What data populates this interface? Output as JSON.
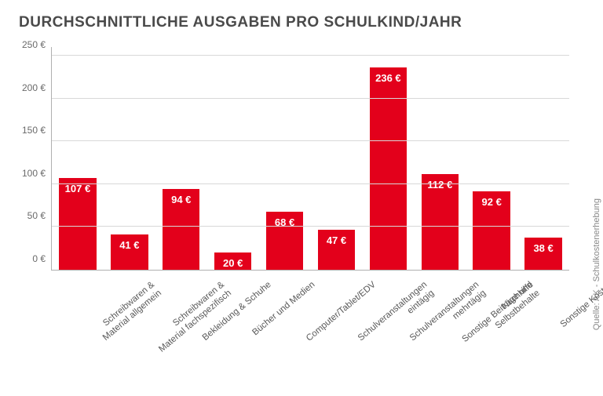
{
  "title": "DURCHSCHNITTLICHE AUSGABEN PRO SCHULKIND/JAHR",
  "source": "Quelle: AK - Schulkostenerhebung",
  "chart": {
    "type": "bar",
    "bar_color": "#e3001b",
    "background_color": "#ffffff",
    "grid_color": "#d8d8d8",
    "axis_color": "#b0b0b0",
    "title_color": "#4a4a4a",
    "label_color": "#5a5a5a",
    "value_label_color": "#ffffff",
    "title_fontsize": 19,
    "value_fontsize": 13,
    "xlabel_fontsize": 11.5,
    "ytick_fontsize": 12,
    "ylim": [
      0,
      260
    ],
    "ytick_step": 50,
    "yticks": [
      {
        "value": 0,
        "label": "0 €"
      },
      {
        "value": 50,
        "label": "50 €"
      },
      {
        "value": 100,
        "label": "100 €"
      },
      {
        "value": 150,
        "label": "150 €"
      },
      {
        "value": 200,
        "label": "200 €"
      },
      {
        "value": 250,
        "label": "250 €"
      }
    ],
    "bars": [
      {
        "value": 107,
        "label": "107 €",
        "category": "Schreibwaren &\nMaterial allgemein"
      },
      {
        "value": 41,
        "label": "41 €",
        "category": "Schreibwaren &\nMaterial fachspezifisch"
      },
      {
        "value": 94,
        "label": "94 €",
        "category": "Bekleidung & Schuhe"
      },
      {
        "value": 20,
        "label": "20 €",
        "category": "Bücher und Medien"
      },
      {
        "value": 68,
        "label": "68 €",
        "category": "Computer/Tablet/EDV"
      },
      {
        "value": 47,
        "label": "47 €",
        "category": "Schulveranstaltungen\neintägig"
      },
      {
        "value": 236,
        "label": "236 €",
        "category": "Schulveranstaltungen\nmehrtägig"
      },
      {
        "value": 112,
        "label": "112 €",
        "category": "Sonstige Beiträge und\nSelbstbehalte"
      },
      {
        "value": 92,
        "label": "92 €",
        "category": "Nachhilfe"
      },
      {
        "value": 38,
        "label": "38 €",
        "category": "Sonstige Kosten"
      }
    ]
  }
}
